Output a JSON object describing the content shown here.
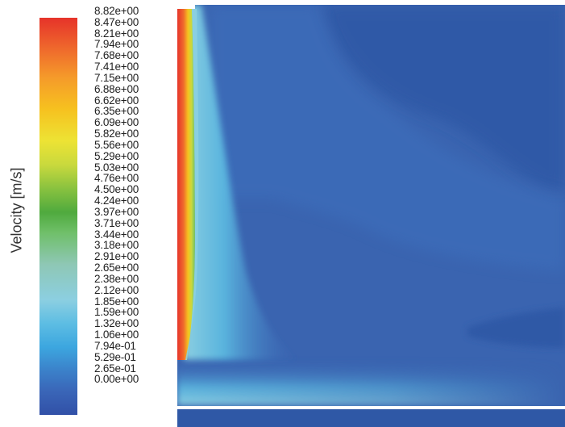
{
  "legend": {
    "title": "Velocity [m/s]",
    "ticks": [
      "8.82e+00",
      "8.47e+00",
      "8.21e+00",
      "7.94e+00",
      "7.68e+00",
      "7.41e+00",
      "7.15e+00",
      "6.88e+00",
      "6.62e+00",
      "6.35e+00",
      "6.09e+00",
      "5.82e+00",
      "5.56e+00",
      "5.29e+00",
      "5.03e+00",
      "4.76e+00",
      "4.50e+00",
      "4.24e+00",
      "3.97e+00",
      "3.71e+00",
      "3.44e+00",
      "3.18e+00",
      "2.91e+00",
      "2.65e+00",
      "2.38e+00",
      "2.12e+00",
      "1.85e+00",
      "1.59e+00",
      "1.32e+00",
      "1.06e+00",
      "7.94e-01",
      "5.29e-01",
      "2.65e-01",
      "0.00e+00"
    ],
    "min": 0,
    "max": 8.82,
    "colormap": [
      "#3150a7",
      "#3b80c9",
      "#3ca6df",
      "#8ccfe1",
      "#6fbf68",
      "#c9d93d",
      "#f6c11f",
      "#ef6a2c",
      "#e6332a"
    ]
  },
  "colors": {
    "background_field": "#3a64b0",
    "dark_field": "#2f58a6",
    "jet_core": "#e6332a"
  }
}
